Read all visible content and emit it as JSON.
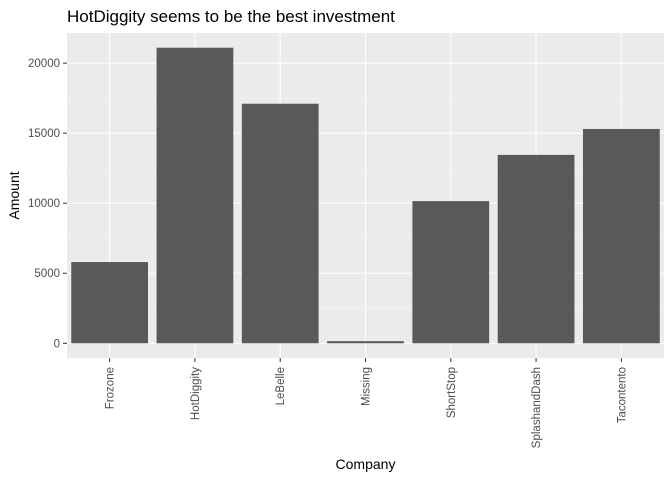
{
  "chart_data": {
    "type": "bar",
    "title": "HotDiggity seems to be the best investment",
    "xlabel": "Company",
    "ylabel": "Amount",
    "categories": [
      "Frozone",
      "HotDiggity",
      "LeBelle",
      "Missing",
      "ShortStop",
      "SplashandDash",
      "Tacontento"
    ],
    "values": [
      5800,
      21100,
      17100,
      150,
      10150,
      13450,
      15300
    ],
    "ylim": [
      -1050,
      22150
    ],
    "yticks": [
      0,
      5000,
      10000,
      15000,
      20000
    ],
    "ytick_labels": [
      "0",
      "5000",
      "10000",
      "15000",
      "20000"
    ],
    "grid": true,
    "legend": "none",
    "colors": {
      "bar": "#595959",
      "panel": "#ebebeb",
      "grid_major": "#ffffff",
      "grid_minor": "#f5f5f5"
    }
  }
}
